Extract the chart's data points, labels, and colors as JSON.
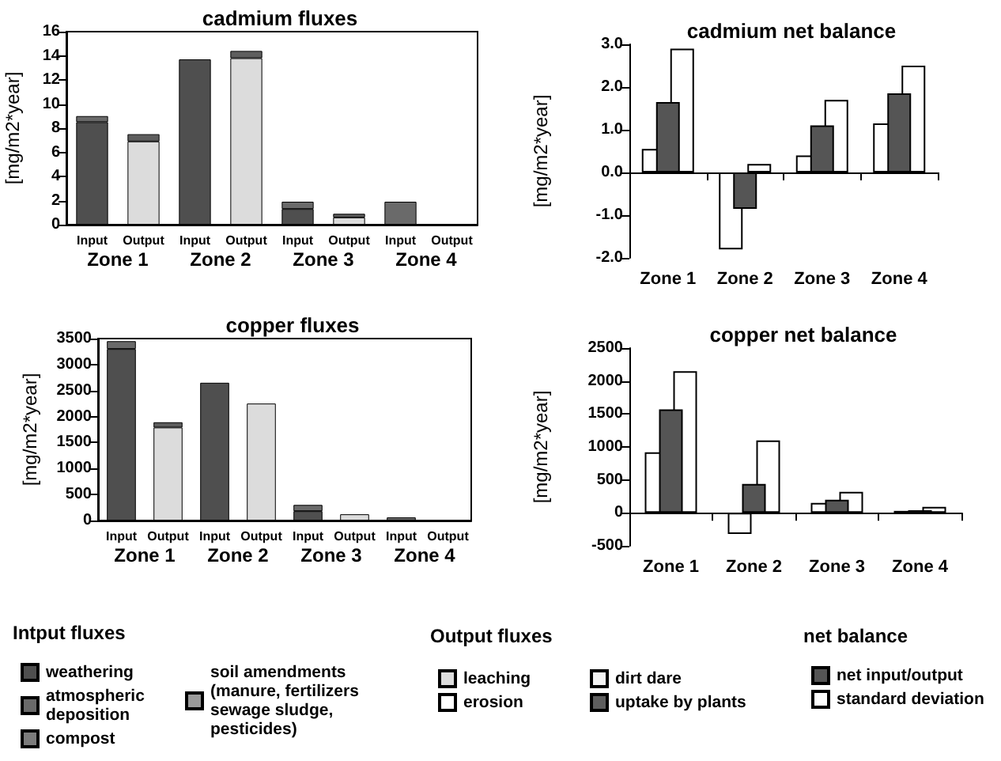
{
  "chart_data": [
    {
      "type": "bar",
      "title": "cadmium fluxes",
      "ylabel": "[mg/m2*year]",
      "stacked": true,
      "legend": "bottom",
      "legend_title": [
        "Intput fluxes",
        "Output fluxes"
      ],
      "categories": [
        "Input",
        "Output",
        "Input",
        "Output",
        "Input",
        "Output",
        "Input",
        "Output"
      ],
      "annotations": [
        "Zone 1",
        "Zone 2",
        "Zone 3",
        "Zone 4"
      ],
      "ylim": [
        0,
        16
      ],
      "yticks": [
        0,
        2,
        4,
        6,
        8,
        10,
        12,
        14,
        16
      ],
      "series": [
        {
          "name": "weathering",
          "color": "#4f4f4f",
          "values": [
            8.5,
            null,
            13.7,
            null,
            1.3,
            null,
            null,
            null
          ]
        },
        {
          "name": "atmospheric deposition",
          "color": "#6a6a6a",
          "values": [
            0.5,
            null,
            null,
            null,
            0.6,
            null,
            1.9,
            null
          ]
        },
        {
          "name": "compost",
          "color": "#7c7c7c",
          "values": [
            null,
            null,
            null,
            null,
            null,
            null,
            null,
            null
          ]
        },
        {
          "name": "soil amendments (manure, fertilizers sewage sludge, pesticides)",
          "color": "#9a9a9a",
          "values": [
            null,
            null,
            null,
            null,
            null,
            null,
            null,
            null
          ]
        },
        {
          "name": "leaching",
          "color": "#dcdcdc",
          "values": [
            null,
            6.9,
            null,
            13.8,
            null,
            0.6,
            null,
            null
          ]
        },
        {
          "name": "erosion",
          "color": "#ffffff",
          "values": [
            null,
            null,
            null,
            null,
            null,
            null,
            null,
            null
          ]
        },
        {
          "name": "dirt dare",
          "color": "#f4f4f4",
          "values": [
            null,
            null,
            null,
            null,
            null,
            null,
            null,
            null
          ]
        },
        {
          "name": "uptake by plants",
          "color": "#5e5e5e",
          "values": [
            null,
            0.6,
            null,
            0.6,
            null,
            0.3,
            null,
            null
          ]
        }
      ]
    },
    {
      "type": "bar",
      "title": "cadmium net balance",
      "ylabel": "[mg/m2*year]",
      "legend": "bottom right",
      "legend_title": "net balance",
      "categories": [
        "Zone 1",
        "Zone 2",
        "Zone 3",
        "Zone 4"
      ],
      "ylim": [
        -2,
        3
      ],
      "yticks": [
        {
          "value": -2,
          "label": "-2.0"
        },
        {
          "value": -1,
          "label": "-1.0"
        },
        {
          "value": 0,
          "label": "0.0"
        },
        {
          "value": 1,
          "label": "1.0"
        },
        {
          "value": 2,
          "label": "2.0"
        },
        {
          "value": 3,
          "label": "3.0"
        }
      ],
      "series": [
        {
          "color": "#ffffff",
          "values": [
            0.55,
            -1.8,
            0.4,
            1.15
          ]
        },
        {
          "name": "net input/output",
          "color": "#555555",
          "values": [
            1.65,
            -0.85,
            1.1,
            1.85
          ]
        },
        {
          "name": "standard deviation",
          "color": "#ffffff",
          "values": [
            2.9,
            0.2,
            1.7,
            2.5
          ]
        }
      ]
    },
    {
      "type": "bar",
      "title": "copper fluxes",
      "ylabel": "[mg/m2*year]",
      "stacked": true,
      "categories": [
        "Input",
        "Output",
        "Input",
        "Output",
        "Input",
        "Output",
        "Input",
        "Output"
      ],
      "annotations": [
        "Zone 1",
        "Zone 2",
        "Zone 3",
        "Zone 4"
      ],
      "ylim": [
        0,
        3500
      ],
      "yticks": [
        0,
        500,
        1000,
        1500,
        2000,
        2500,
        3000,
        3500
      ],
      "series": [
        {
          "color": "#4f4f4f",
          "values": [
            3300,
            null,
            2650,
            null,
            180,
            null,
            null,
            null
          ]
        },
        {
          "color": "#6a6a6a",
          "values": [
            150,
            null,
            null,
            null,
            120,
            null,
            60,
            null
          ]
        },
        {
          "color": "#dcdcdc",
          "values": [
            null,
            1790,
            null,
            2250,
            null,
            120,
            null,
            null
          ]
        },
        {
          "color": "#5e5e5e",
          "values": [
            null,
            100,
            null,
            null,
            null,
            null,
            null,
            null
          ]
        }
      ]
    },
    {
      "type": "bar",
      "title": "copper net balance",
      "ylabel": "[mg/m2*year]",
      "categories": [
        "Zone 1",
        "Zone 2",
        "Zone 3",
        "Zone 4"
      ],
      "ylim": [
        -500,
        2500
      ],
      "yticks": [
        -500,
        0,
        500,
        1000,
        1500,
        2000,
        2500
      ],
      "series": [
        {
          "color": "#ffffff",
          "values": [
            920,
            -320,
            150,
            30
          ]
        },
        {
          "color": "#555555",
          "values": [
            1570,
            440,
            200,
            40
          ]
        },
        {
          "color": "#ffffff",
          "values": [
            2150,
            1100,
            320,
            90
          ]
        }
      ]
    }
  ]
}
